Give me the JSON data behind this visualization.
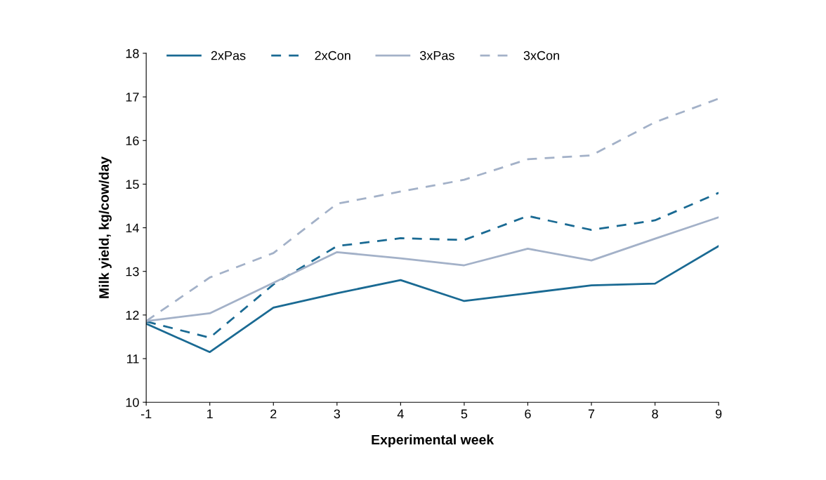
{
  "chart_data": {
    "type": "line",
    "xlabel": "Experimental week",
    "ylabel": "Milk yield, kg/cow/day",
    "categories": [
      "-1",
      "1",
      "2",
      "3",
      "4",
      "5",
      "6",
      "7",
      "8",
      "9"
    ],
    "ylim": [
      10,
      18
    ],
    "yticks": [
      10,
      11,
      12,
      13,
      14,
      15,
      16,
      17,
      18
    ],
    "grid": false,
    "legend": "top",
    "marker": "none",
    "series": [
      {
        "name": "2xPas",
        "color": "#1a6a93",
        "line_style": "solid",
        "values": [
          11.8,
          11.15,
          12.17,
          12.5,
          12.8,
          12.32,
          12.5,
          12.68,
          12.72,
          13.58
        ]
      },
      {
        "name": "2xCon",
        "color": "#1a6a93",
        "line_style": "dashed",
        "values": [
          11.85,
          11.48,
          12.7,
          13.58,
          13.76,
          13.72,
          14.27,
          13.95,
          14.17,
          14.8
        ]
      },
      {
        "name": "3xPas",
        "color": "#a3b1c8",
        "line_style": "solid",
        "values": [
          11.86,
          12.04,
          12.74,
          13.44,
          13.3,
          13.14,
          13.52,
          13.25,
          13.75,
          14.24
        ]
      },
      {
        "name": "3xCon",
        "color": "#a3b1c8",
        "line_style": "dashed",
        "values": [
          11.86,
          12.86,
          13.42,
          14.55,
          14.83,
          15.1,
          15.57,
          15.66,
          16.42,
          16.96
        ]
      }
    ]
  }
}
